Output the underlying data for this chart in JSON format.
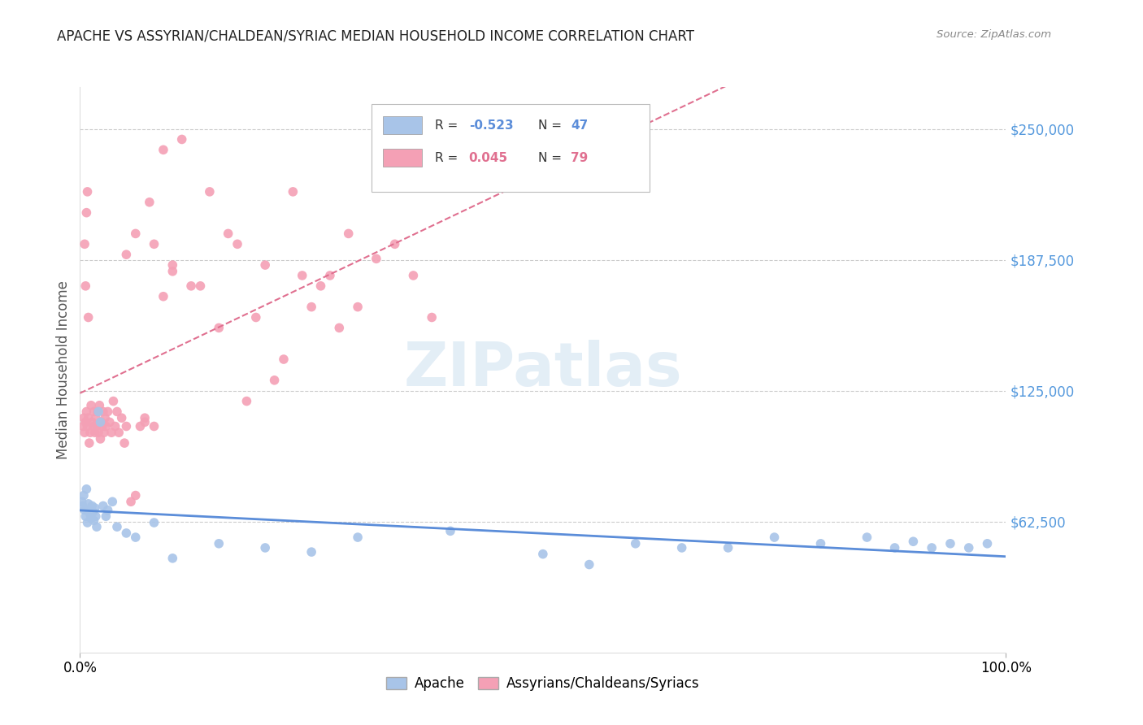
{
  "title": "APACHE VS ASSYRIAN/CHALDEAN/SYRIAC MEDIAN HOUSEHOLD INCOME CORRELATION CHART",
  "source": "Source: ZipAtlas.com",
  "ylabel": "Median Household Income",
  "watermark": "ZIPatlas",
  "apache_R": -0.523,
  "apache_N": 47,
  "assyrian_R": 0.045,
  "assyrian_N": 79,
  "apache_color": "#a8c4e8",
  "assyrian_color": "#f4a0b5",
  "apache_line_color": "#5b8dd9",
  "assyrian_line_color": "#e07090",
  "ytick_labels": [
    "$250,000",
    "$187,500",
    "$125,000",
    "$62,500"
  ],
  "ytick_values": [
    250000,
    187500,
    125000,
    62500
  ],
  "ytick_color": "#5599dd",
  "xmin": 0.0,
  "xmax": 1.0,
  "ymin": 0,
  "ymax": 270000,
  "apache_x": [
    0.002,
    0.003,
    0.004,
    0.005,
    0.006,
    0.007,
    0.008,
    0.009,
    0.01,
    0.011,
    0.012,
    0.013,
    0.014,
    0.015,
    0.016,
    0.017,
    0.018,
    0.02,
    0.022,
    0.025,
    0.028,
    0.03,
    0.035,
    0.04,
    0.05,
    0.06,
    0.08,
    0.1,
    0.15,
    0.2,
    0.25,
    0.3,
    0.4,
    0.5,
    0.55,
    0.6,
    0.65,
    0.7,
    0.75,
    0.8,
    0.85,
    0.88,
    0.9,
    0.92,
    0.94,
    0.96,
    0.98
  ],
  "apache_y": [
    72000,
    70000,
    75000,
    68000,
    65000,
    78000,
    62000,
    71000,
    68000,
    66000,
    64000,
    70000,
    67000,
    63000,
    69000,
    65000,
    60000,
    115000,
    110000,
    70000,
    65000,
    68000,
    72000,
    60000,
    57000,
    55000,
    62000,
    45000,
    52000,
    50000,
    48000,
    55000,
    58000,
    47000,
    42000,
    52000,
    50000,
    50000,
    55000,
    52000,
    55000,
    50000,
    53000,
    50000,
    52000,
    50000,
    52000
  ],
  "assyrian_x": [
    0.003,
    0.004,
    0.005,
    0.006,
    0.007,
    0.008,
    0.009,
    0.01,
    0.011,
    0.012,
    0.013,
    0.014,
    0.015,
    0.016,
    0.017,
    0.018,
    0.019,
    0.02,
    0.021,
    0.022,
    0.023,
    0.024,
    0.025,
    0.026,
    0.027,
    0.028,
    0.03,
    0.032,
    0.034,
    0.036,
    0.038,
    0.04,
    0.042,
    0.045,
    0.048,
    0.05,
    0.055,
    0.06,
    0.065,
    0.07,
    0.075,
    0.08,
    0.09,
    0.1,
    0.11,
    0.12,
    0.13,
    0.14,
    0.15,
    0.16,
    0.17,
    0.18,
    0.19,
    0.2,
    0.21,
    0.22,
    0.23,
    0.24,
    0.25,
    0.26,
    0.27,
    0.28,
    0.29,
    0.3,
    0.32,
    0.34,
    0.36,
    0.38,
    0.05,
    0.06,
    0.07,
    0.08,
    0.09,
    0.1,
    0.005,
    0.006,
    0.007,
    0.008,
    0.009
  ],
  "assyrian_y": [
    108000,
    112000,
    105000,
    110000,
    115000,
    108000,
    112000,
    100000,
    105000,
    118000,
    110000,
    108000,
    115000,
    105000,
    112000,
    108000,
    115000,
    105000,
    118000,
    102000,
    110000,
    108000,
    115000,
    105000,
    112000,
    108000,
    115000,
    110000,
    105000,
    120000,
    108000,
    115000,
    105000,
    112000,
    100000,
    108000,
    72000,
    75000,
    108000,
    112000,
    215000,
    195000,
    170000,
    182000,
    245000,
    175000,
    175000,
    220000,
    155000,
    200000,
    195000,
    120000,
    160000,
    185000,
    130000,
    140000,
    220000,
    180000,
    165000,
    175000,
    180000,
    155000,
    200000,
    165000,
    188000,
    195000,
    180000,
    160000,
    190000,
    200000,
    110000,
    108000,
    240000,
    185000,
    195000,
    175000,
    210000,
    220000,
    160000
  ]
}
